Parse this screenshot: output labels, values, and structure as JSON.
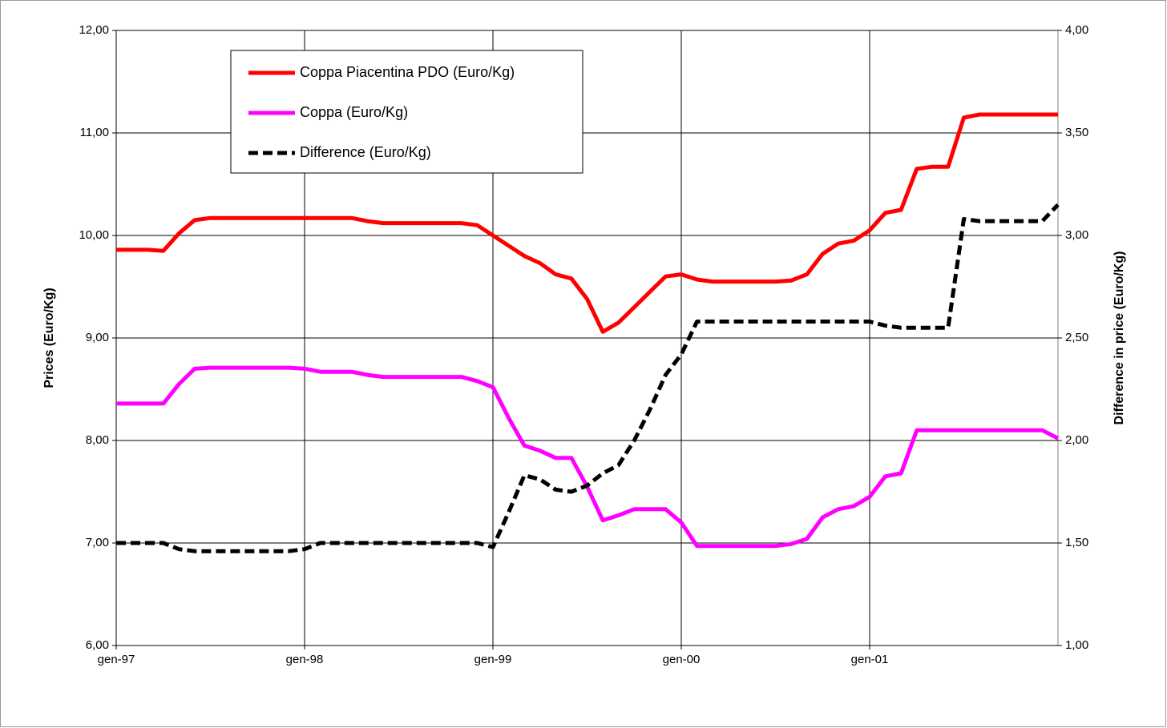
{
  "chart_data": {
    "type": "line",
    "categories": [
      "gen-97",
      null,
      null,
      null,
      null,
      null,
      null,
      null,
      null,
      null,
      null,
      null,
      "gen-98",
      null,
      null,
      null,
      null,
      null,
      null,
      null,
      null,
      null,
      null,
      null,
      "gen-99",
      null,
      null,
      null,
      null,
      null,
      null,
      null,
      null,
      null,
      null,
      null,
      "gen-00",
      null,
      null,
      null,
      null,
      null,
      null,
      null,
      null,
      null,
      null,
      null,
      "gen-01",
      null,
      null,
      null,
      null,
      null,
      null,
      null,
      null,
      null,
      null,
      null,
      null
    ],
    "series": [
      {
        "name": "Coppa Piacentina PDO (Euro/Kg)",
        "color": "#ff0000",
        "axis": "y",
        "values": [
          9.86,
          9.86,
          9.86,
          9.85,
          10.02,
          10.15,
          10.17,
          10.17,
          10.17,
          10.17,
          10.17,
          10.17,
          10.17,
          10.17,
          10.17,
          10.17,
          10.14,
          10.12,
          10.12,
          10.12,
          10.12,
          10.12,
          10.12,
          10.1,
          10.0,
          9.9,
          9.8,
          9.73,
          9.62,
          9.58,
          9.38,
          9.06,
          9.15,
          9.3,
          9.45,
          9.6,
          9.62,
          9.57,
          9.55,
          9.55,
          9.55,
          9.55,
          9.55,
          9.56,
          9.62,
          9.82,
          9.92,
          9.95,
          10.05,
          10.22,
          10.25,
          10.65,
          10.67,
          10.67,
          11.15,
          11.18,
          11.18,
          11.18,
          11.18,
          11.18,
          11.18
        ]
      },
      {
        "name": "Coppa  (Euro/Kg)",
        "color": "#ff00ff",
        "axis": "y",
        "values": [
          8.36,
          8.36,
          8.36,
          8.36,
          8.55,
          8.7,
          8.71,
          8.71,
          8.71,
          8.71,
          8.71,
          8.71,
          8.7,
          8.67,
          8.67,
          8.67,
          8.64,
          8.62,
          8.62,
          8.62,
          8.62,
          8.62,
          8.62,
          8.58,
          8.52,
          8.22,
          7.95,
          7.9,
          7.83,
          7.83,
          7.55,
          7.22,
          7.27,
          7.33,
          7.33,
          7.33,
          7.2,
          6.97,
          6.97,
          6.97,
          6.97,
          6.97,
          6.97,
          6.99,
          7.04,
          7.25,
          7.33,
          7.36,
          7.45,
          7.65,
          7.68,
          8.1,
          8.1,
          8.1,
          8.1,
          8.1,
          8.1,
          8.1,
          8.1,
          8.1,
          8.02
        ]
      },
      {
        "name": "Difference (Euro/Kg)",
        "color": "#000000",
        "axis": "y2",
        "dash": true,
        "values": [
          1.5,
          1.5,
          1.5,
          1.5,
          1.47,
          1.46,
          1.46,
          1.46,
          1.46,
          1.46,
          1.46,
          1.46,
          1.47,
          1.5,
          1.5,
          1.5,
          1.5,
          1.5,
          1.5,
          1.5,
          1.5,
          1.5,
          1.5,
          1.5,
          1.48,
          1.65,
          1.83,
          1.81,
          1.76,
          1.75,
          1.78,
          1.84,
          1.88,
          2.0,
          2.15,
          2.32,
          2.42,
          2.58,
          2.58,
          2.58,
          2.58,
          2.58,
          2.58,
          2.58,
          2.58,
          2.58,
          2.58,
          2.58,
          2.58,
          2.56,
          2.55,
          2.55,
          2.55,
          2.55,
          3.08,
          3.07,
          3.07,
          3.07,
          3.07,
          3.07,
          3.15
        ]
      }
    ],
    "ylabel": "Prices (Euro/Kg)",
    "y2label": "Difference in price (Euro/Kg)",
    "ylim": [
      6,
      12
    ],
    "yticks": [
      {
        "value": 6,
        "label": "6,00"
      },
      {
        "value": 7,
        "label": "7,00"
      },
      {
        "value": 8,
        "label": "8,00"
      },
      {
        "value": 9,
        "label": "9,00"
      },
      {
        "value": 10,
        "label": "10,00"
      },
      {
        "value": 11,
        "label": "11,00"
      },
      {
        "value": 12,
        "label": "12,00"
      }
    ],
    "y2lim": [
      1,
      4
    ],
    "y2ticks": [
      {
        "value": 1,
        "label": "1,00"
      },
      {
        "value": 1.5,
        "label": "1,50"
      },
      {
        "value": 2,
        "label": "2,00"
      },
      {
        "value": 2.5,
        "label": "2,50"
      },
      {
        "value": 3,
        "label": "3,00"
      },
      {
        "value": 3.5,
        "label": "3,50"
      },
      {
        "value": 4,
        "label": "4,00"
      }
    ],
    "grid": true,
    "legend": "upper left"
  }
}
